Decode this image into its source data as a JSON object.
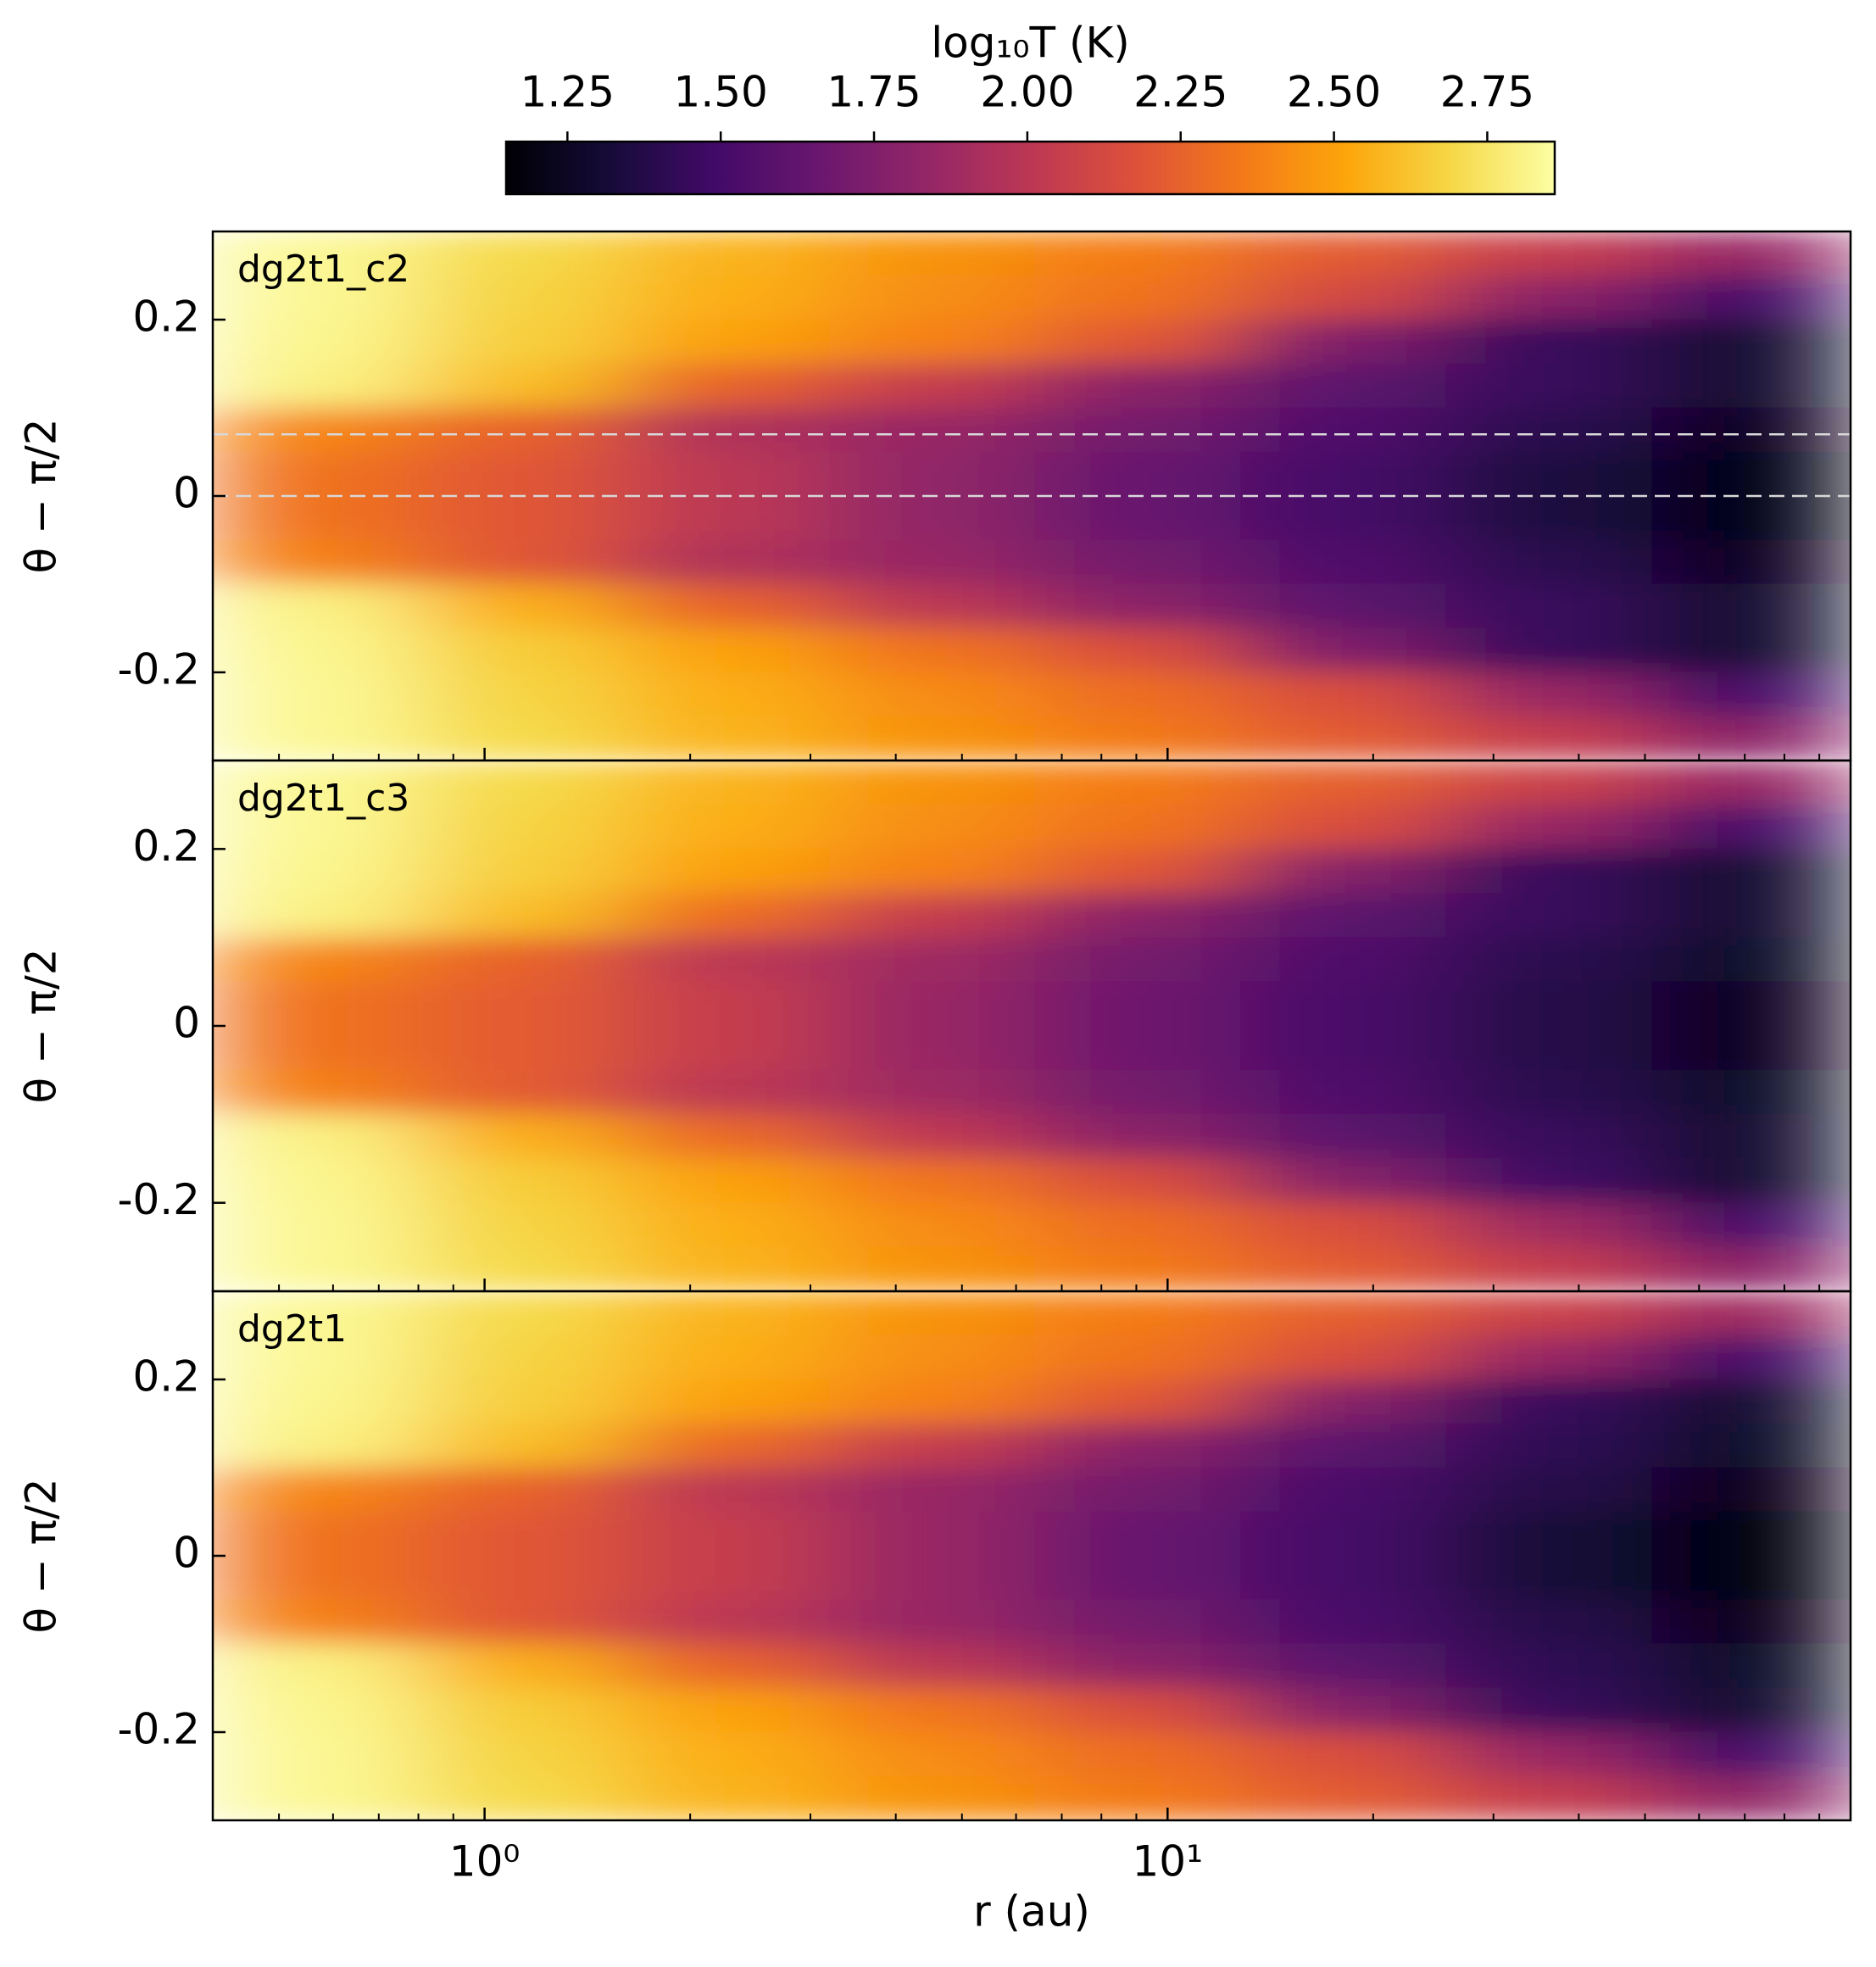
{
  "chart_data": [
    {
      "type": "heatmap",
      "annotation": "dg2t1_c2",
      "ylabel": "θ − π/2",
      "xscale": "log",
      "xlim": [
        0.4,
        100
      ],
      "ylim": [
        -0.3,
        0.3
      ],
      "yticks": [
        -0.2,
        0.0,
        0.2
      ],
      "xticks": [
        1,
        10
      ],
      "xminor": [
        0.5,
        0.6,
        0.7,
        0.8,
        0.9,
        2,
        3,
        4,
        5,
        6,
        7,
        8,
        9,
        20,
        30,
        40,
        50,
        60,
        70,
        80,
        90
      ],
      "hlines": [
        0.07,
        0.0
      ],
      "hline_color": "#d8d8d8",
      "x_edges": [
        0.4,
        0.8,
        1.6,
        3.2,
        6.4,
        12.8,
        25.6,
        51.2,
        100
      ],
      "y_edges": [
        0.3,
        0.25,
        0.2,
        0.15,
        0.1,
        0.05,
        0.0,
        -0.05,
        -0.1,
        -0.15,
        -0.2,
        -0.25,
        -0.3
      ],
      "z": [
        [
          2.83,
          2.7,
          2.57,
          2.45,
          2.36,
          2.22,
          2.05,
          1.85
        ],
        [
          2.83,
          2.68,
          2.55,
          2.43,
          2.32,
          2.12,
          1.8,
          1.5
        ],
        [
          2.82,
          2.66,
          2.5,
          2.38,
          2.2,
          1.75,
          1.45,
          1.3
        ],
        [
          2.8,
          2.6,
          2.25,
          2.05,
          1.8,
          1.6,
          1.45,
          1.3
        ],
        [
          2.4,
          2.25,
          1.95,
          1.85,
          1.7,
          1.55,
          1.4,
          1.25
        ],
        [
          2.32,
          2.2,
          2.0,
          1.82,
          1.65,
          1.5,
          1.35,
          1.2
        ],
        [
          2.32,
          2.2,
          2.0,
          1.82,
          1.65,
          1.5,
          1.35,
          1.2
        ],
        [
          2.38,
          2.2,
          1.95,
          1.85,
          1.7,
          1.55,
          1.4,
          1.25
        ],
        [
          2.8,
          2.55,
          2.25,
          2.0,
          1.8,
          1.6,
          1.45,
          1.3
        ],
        [
          2.82,
          2.65,
          2.5,
          2.32,
          2.15,
          1.75,
          1.45,
          1.3
        ],
        [
          2.83,
          2.68,
          2.55,
          2.42,
          2.3,
          2.15,
          1.85,
          1.5
        ],
        [
          2.83,
          2.7,
          2.57,
          2.45,
          2.35,
          2.22,
          2.05,
          1.8
        ]
      ],
      "colorbar": {
        "label": "log₁₀T (K)",
        "colormap": "inferno",
        "clim": [
          1.15,
          2.86
        ],
        "ticks": [
          1.25,
          {
            "value": 1.5,
            "label": "1.50"
          },
          1.75,
          {
            "value": 2.0,
            "label": "2.00"
          },
          2.25,
          {
            "value": 2.5,
            "label": "2.50"
          },
          2.75
        ]
      }
    },
    {
      "type": "heatmap",
      "annotation": "dg2t1_c3",
      "ylabel": "θ − π/2",
      "xscale": "log",
      "xlim": [
        0.4,
        100
      ],
      "ylim": [
        -0.3,
        0.3
      ],
      "yticks": [
        -0.2,
        0.0,
        0.2
      ],
      "xticks": [
        1,
        10
      ],
      "xminor": [
        0.5,
        0.6,
        0.7,
        0.8,
        0.9,
        2,
        3,
        4,
        5,
        6,
        7,
        8,
        9,
        20,
        30,
        40,
        50,
        60,
        70,
        80,
        90
      ],
      "x_edges": [
        0.4,
        0.8,
        1.6,
        3.2,
        6.4,
        12.8,
        25.6,
        51.2,
        100
      ],
      "y_edges": [
        0.3,
        0.25,
        0.2,
        0.15,
        0.1,
        0.05,
        0.0,
        -0.05,
        -0.1,
        -0.15,
        -0.2,
        -0.25,
        -0.3
      ],
      "z": [
        [
          2.83,
          2.7,
          2.57,
          2.45,
          2.36,
          2.24,
          2.08,
          1.85
        ],
        [
          2.83,
          2.68,
          2.55,
          2.43,
          2.32,
          2.15,
          1.85,
          1.5
        ],
        [
          2.82,
          2.66,
          2.5,
          2.38,
          2.2,
          1.78,
          1.45,
          1.3
        ],
        [
          2.8,
          2.6,
          2.3,
          2.05,
          1.8,
          1.6,
          1.45,
          1.3
        ],
        [
          2.4,
          2.25,
          2.0,
          1.88,
          1.7,
          1.55,
          1.4,
          1.28
        ],
        [
          2.32,
          2.22,
          2.05,
          1.85,
          1.68,
          1.52,
          1.38,
          1.25
        ],
        [
          2.32,
          2.22,
          2.05,
          1.85,
          1.68,
          1.52,
          1.38,
          1.25
        ],
        [
          2.38,
          2.22,
          2.0,
          1.88,
          1.7,
          1.55,
          1.4,
          1.28
        ],
        [
          2.8,
          2.55,
          2.28,
          2.02,
          1.8,
          1.6,
          1.45,
          1.3
        ],
        [
          2.82,
          2.65,
          2.5,
          2.33,
          2.15,
          1.78,
          1.48,
          1.3
        ],
        [
          2.83,
          2.68,
          2.55,
          2.42,
          2.3,
          2.15,
          1.88,
          1.5
        ],
        [
          2.83,
          2.7,
          2.57,
          2.45,
          2.35,
          2.22,
          2.05,
          1.8
        ]
      ]
    },
    {
      "type": "heatmap",
      "annotation": "dg2t1",
      "ylabel": "θ − π/2",
      "xlabel": "r (au)",
      "xscale": "log",
      "xlim": [
        0.4,
        100
      ],
      "ylim": [
        -0.3,
        0.3
      ],
      "yticks": [
        -0.2,
        0.0,
        0.2
      ],
      "xticks": [
        {
          "value": 1,
          "label": "10⁰"
        },
        {
          "value": 10,
          "label": "10¹"
        }
      ],
      "xminor": [
        0.5,
        0.6,
        0.7,
        0.8,
        0.9,
        2,
        3,
        4,
        5,
        6,
        7,
        8,
        9,
        20,
        30,
        40,
        50,
        60,
        70,
        80,
        90
      ],
      "x_edges": [
        0.4,
        0.8,
        1.6,
        3.2,
        6.4,
        12.8,
        25.6,
        51.2,
        100
      ],
      "y_edges": [
        0.3,
        0.25,
        0.2,
        0.15,
        0.1,
        0.05,
        0.0,
        -0.05,
        -0.1,
        -0.15,
        -0.2,
        -0.25,
        -0.3
      ],
      "z": [
        [
          2.83,
          2.7,
          2.57,
          2.45,
          2.36,
          2.24,
          2.08,
          1.88
        ],
        [
          2.83,
          2.68,
          2.55,
          2.43,
          2.32,
          2.15,
          1.85,
          1.5
        ],
        [
          2.82,
          2.66,
          2.5,
          2.38,
          2.2,
          1.78,
          1.45,
          1.3
        ],
        [
          2.8,
          2.6,
          2.28,
          2.05,
          1.8,
          1.6,
          1.42,
          1.28
        ],
        [
          2.4,
          2.25,
          2.0,
          1.85,
          1.7,
          1.52,
          1.38,
          1.22
        ],
        [
          2.32,
          2.2,
          2.05,
          1.85,
          1.65,
          1.5,
          1.32,
          1.18
        ],
        [
          2.32,
          2.2,
          2.05,
          1.85,
          1.65,
          1.5,
          1.32,
          1.18
        ],
        [
          2.38,
          2.2,
          2.0,
          1.85,
          1.7,
          1.52,
          1.38,
          1.22
        ],
        [
          2.8,
          2.55,
          2.25,
          2.0,
          1.8,
          1.6,
          1.42,
          1.28
        ],
        [
          2.82,
          2.65,
          2.5,
          2.33,
          2.15,
          1.78,
          1.45,
          1.3
        ],
        [
          2.83,
          2.68,
          2.55,
          2.42,
          2.3,
          2.15,
          1.85,
          1.5
        ],
        [
          2.83,
          2.7,
          2.57,
          2.45,
          2.35,
          2.22,
          2.05,
          1.82
        ]
      ]
    }
  ]
}
